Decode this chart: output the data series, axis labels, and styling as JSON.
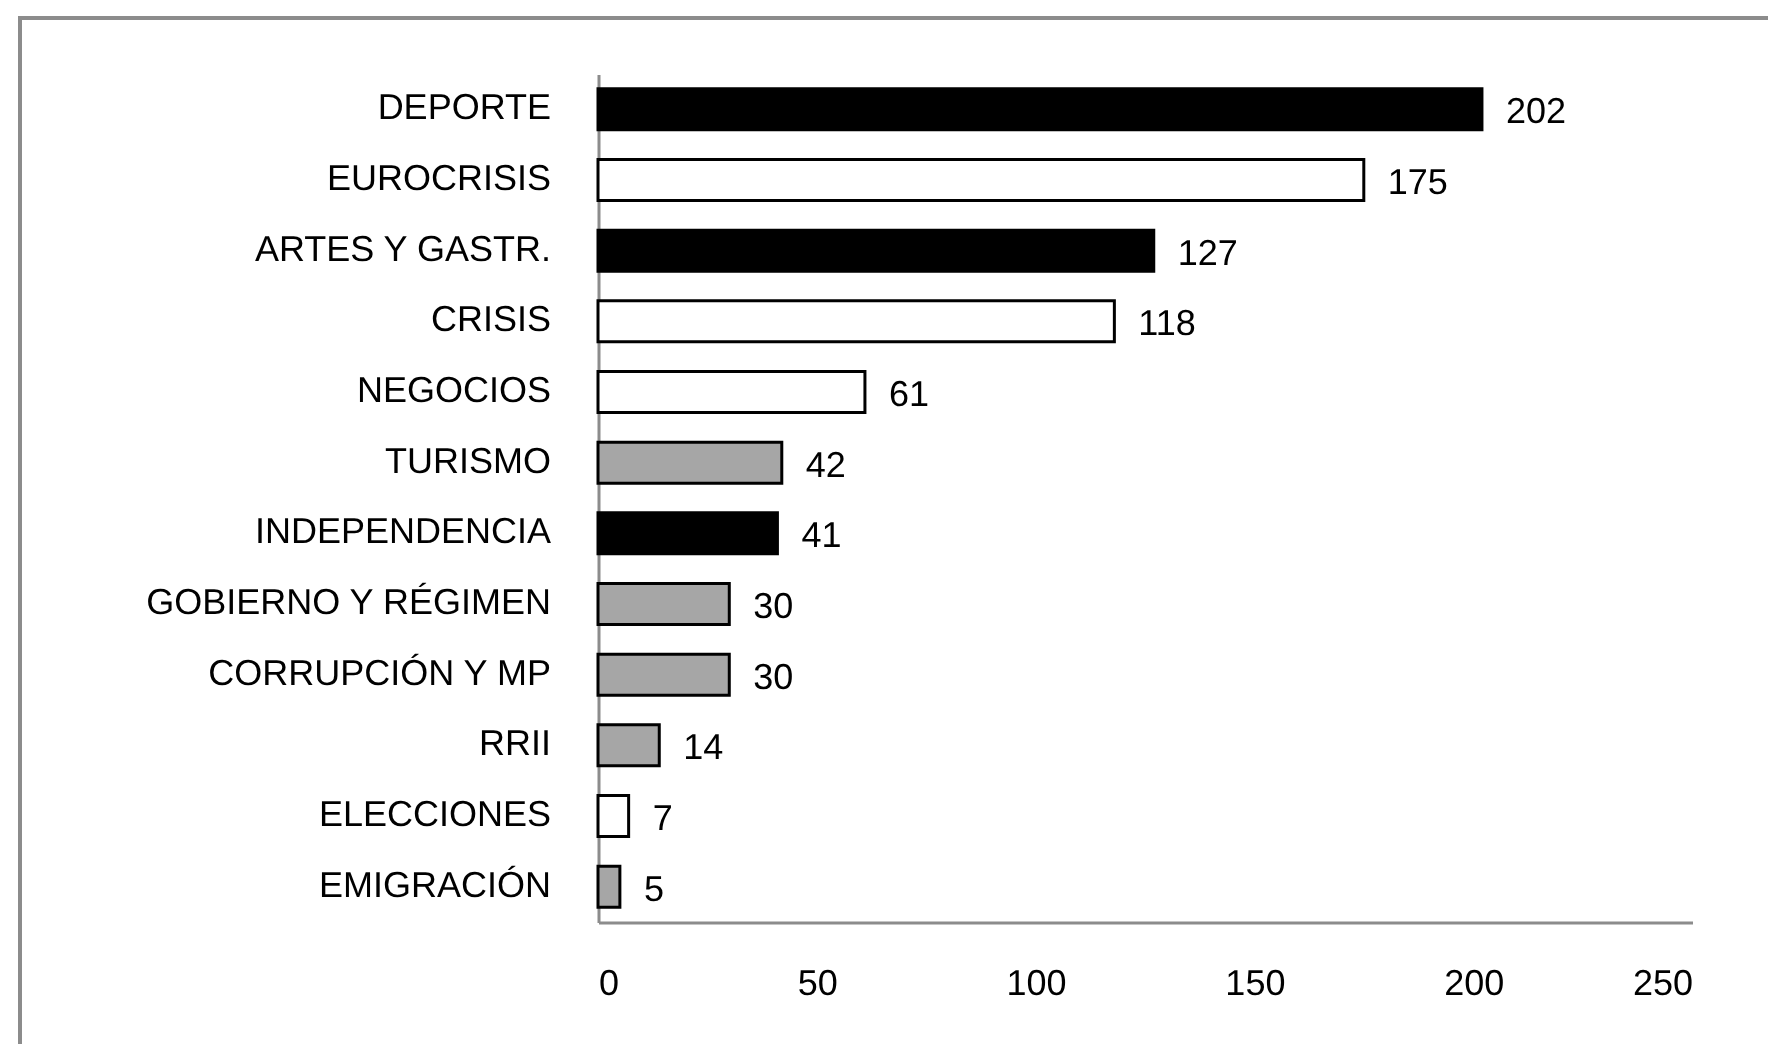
{
  "chart_data": {
    "type": "bar",
    "orientation": "horizontal",
    "categories": [
      "DEPORTE",
      "EUROCRISIS",
      "ARTES Y GASTR.",
      "CRISIS",
      "NEGOCIOS",
      "TURISMO",
      "INDEPENDENCIA",
      "GOBIERNO Y RÉGIMEN",
      "CORRUPCIÓN Y MP",
      "RRII",
      "ELECCIONES",
      "EMIGRACIÓN"
    ],
    "values": [
      202,
      175,
      127,
      118,
      61,
      42,
      41,
      30,
      30,
      14,
      7,
      5
    ],
    "colors": [
      "#000000",
      "#ffffff",
      "#000000",
      "#ffffff",
      "#ffffff",
      "#a6a6a6",
      "#000000",
      "#a6a6a6",
      "#a6a6a6",
      "#a6a6a6",
      "#ffffff",
      "#a6a6a6"
    ],
    "xlim": [
      0,
      250
    ],
    "xticks": [
      0,
      50,
      100,
      150,
      200,
      250
    ],
    "data_labels": true
  }
}
